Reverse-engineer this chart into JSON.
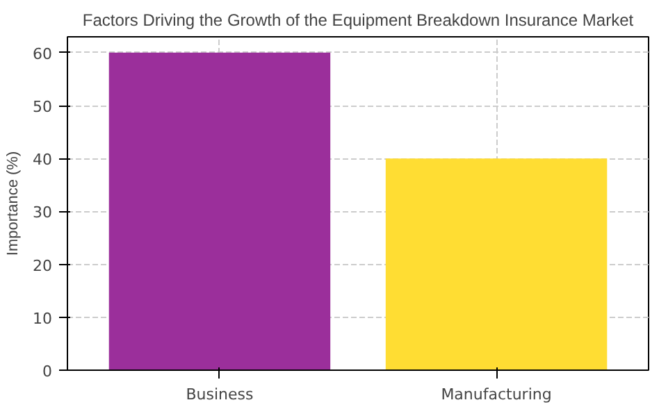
{
  "chart_data": {
    "type": "bar",
    "title": "Factors Driving the Growth of the Equipment Breakdown Insurance Market",
    "ylabel": "Importance (%)",
    "categories": [
      "Business",
      "Manufacturing"
    ],
    "values": [
      60,
      40
    ],
    "colors": [
      "#9b2f9b",
      "#ffdd33"
    ],
    "ylim": [
      0,
      63
    ],
    "yticks": [
      0,
      10,
      20,
      30,
      40,
      50,
      60
    ],
    "grid": true
  }
}
